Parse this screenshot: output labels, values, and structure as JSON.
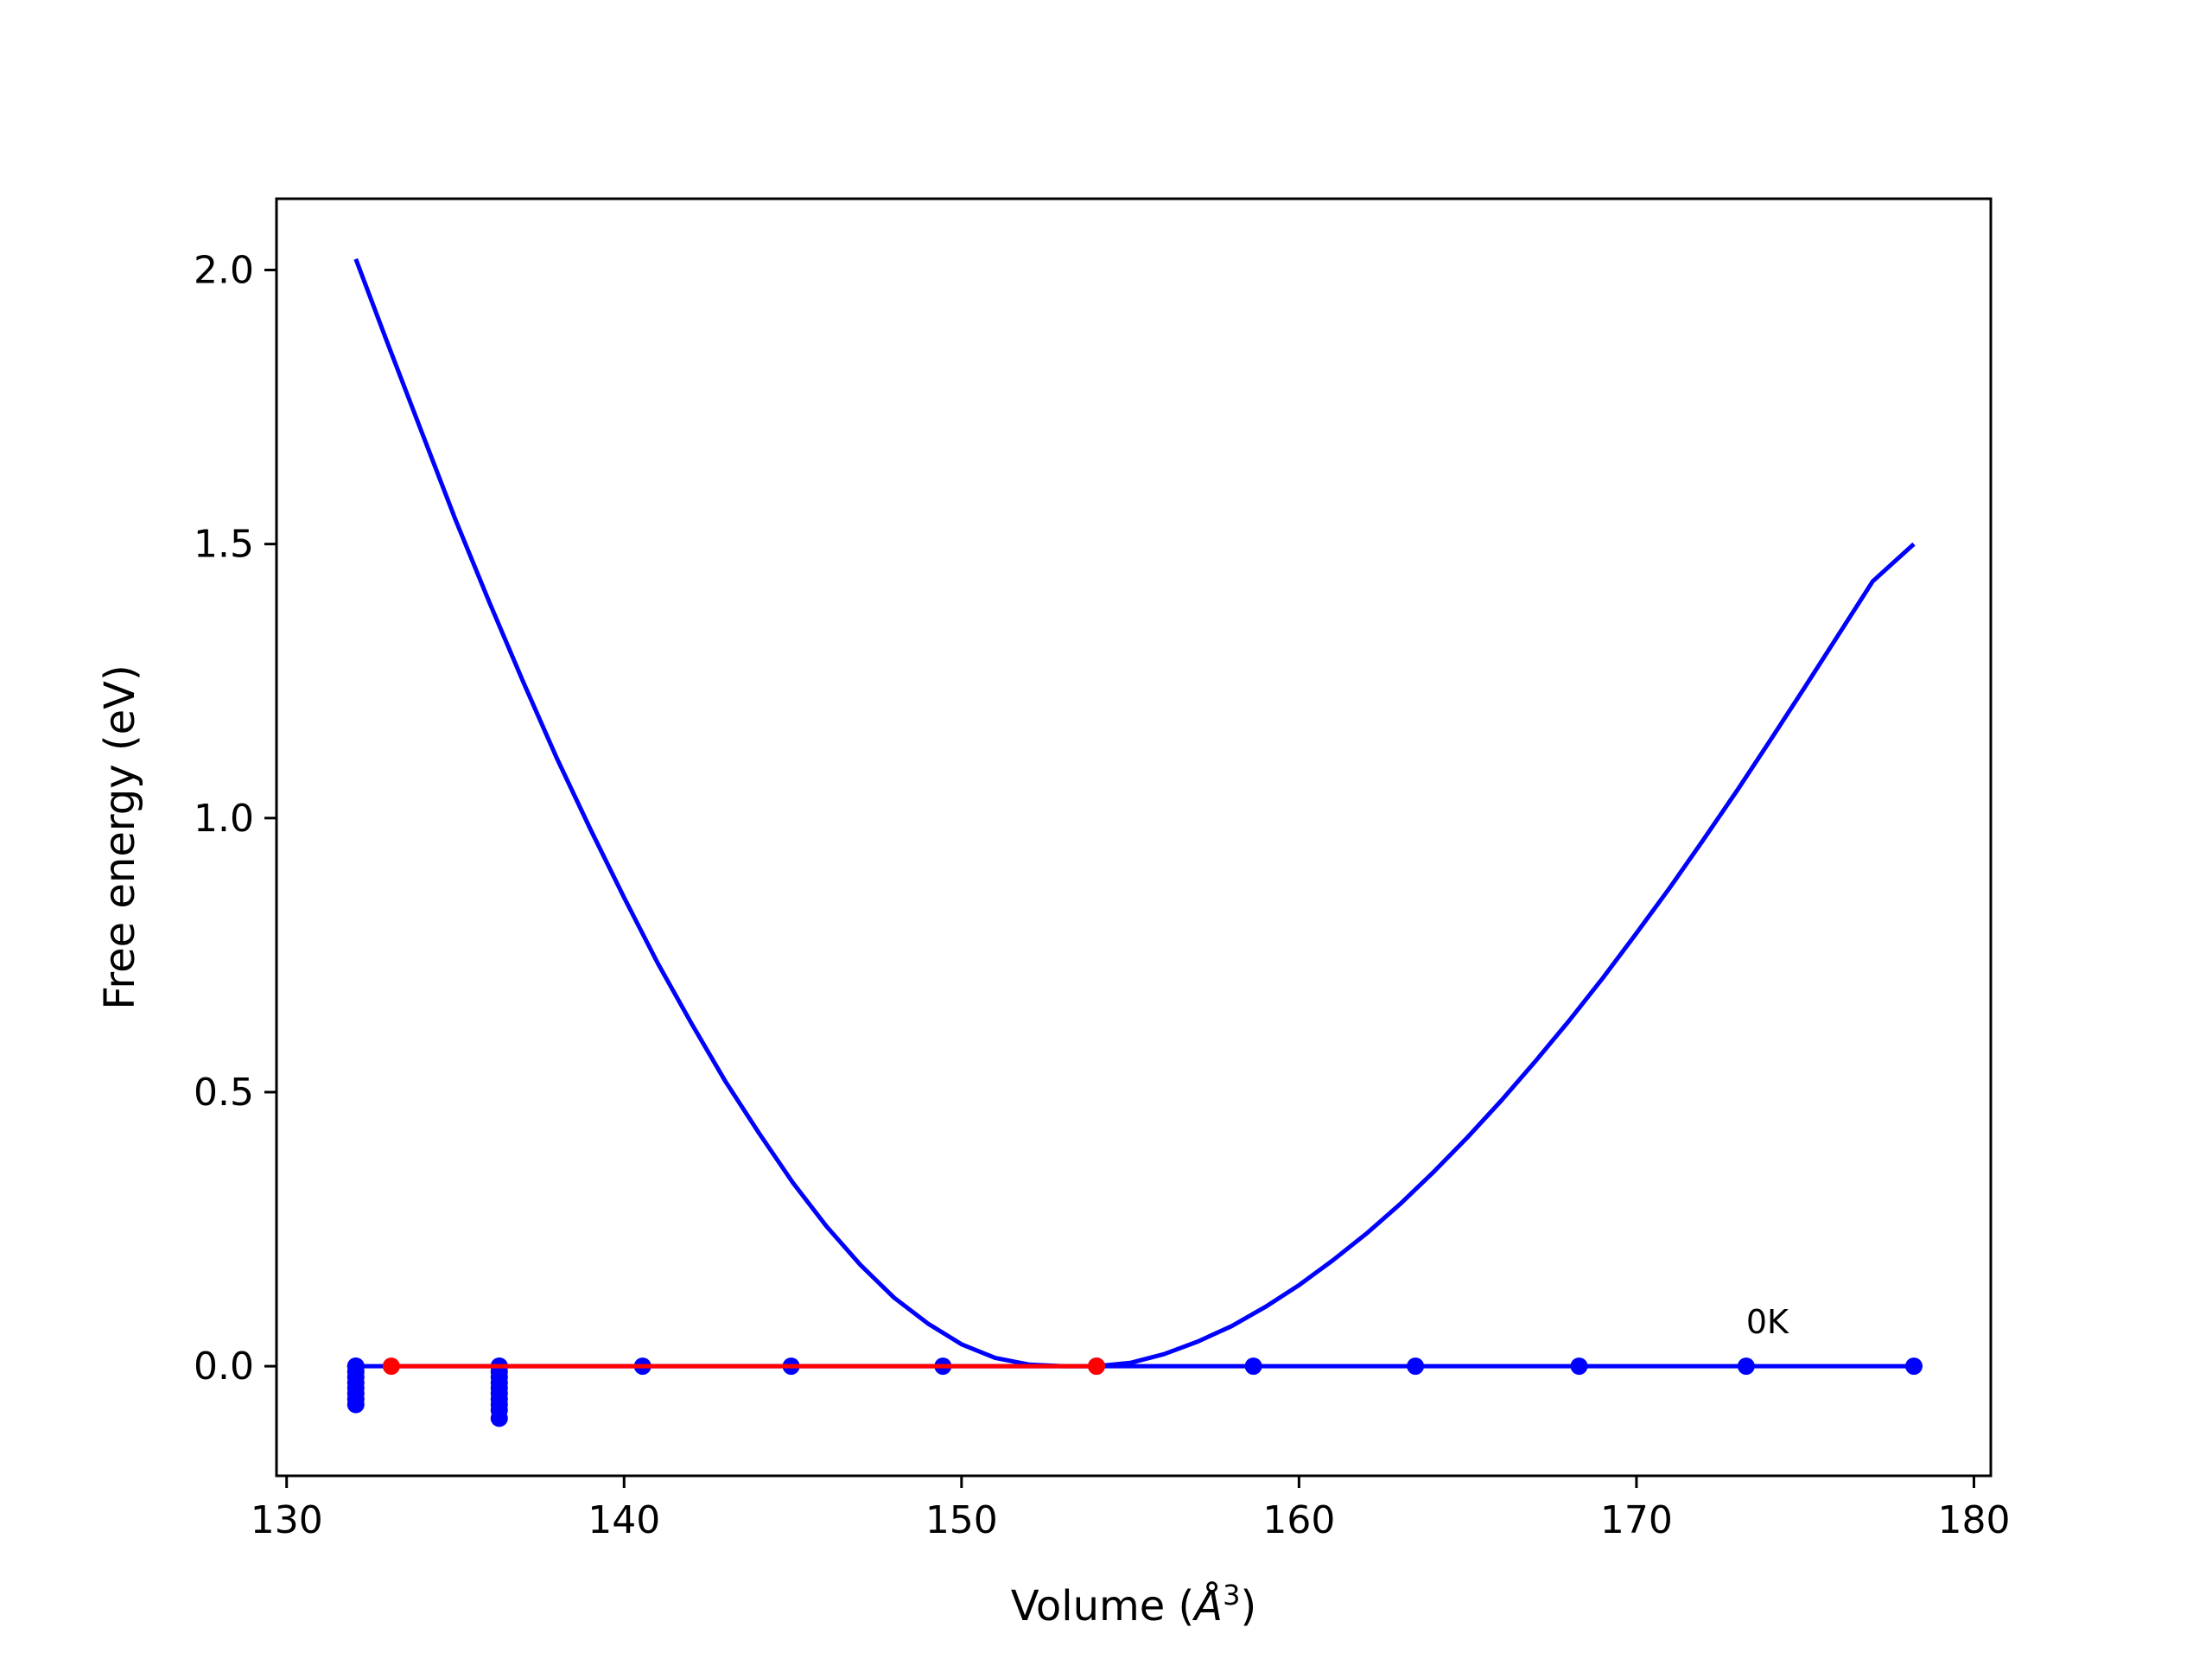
{
  "chart_data": {
    "type": "line",
    "title": "",
    "xlabel": "Volume (Å³)",
    "xlabel_main": "Volume (",
    "xlabel_unit": "Å",
    "xlabel_sup": "3",
    "xlabel_close": ")",
    "ylabel": "Free energy (eV)",
    "xlim": [
      129.7,
      180.5
    ],
    "ylim": [
      -0.2,
      2.13
    ],
    "xticks": [
      130,
      140,
      150,
      160,
      170,
      180
    ],
    "yticks": [
      0.0,
      0.5,
      1.0,
      1.5,
      2.0
    ],
    "xtick_labels": [
      "130",
      "140",
      "150",
      "160",
      "170",
      "180"
    ],
    "ytick_labels": [
      "0.0",
      "0.5",
      "1.0",
      "1.5",
      "2.0"
    ],
    "grid": false,
    "legend": null,
    "series": [
      {
        "color": "#0000ff",
        "kind": "line",
        "x": [
          132.05,
          133.0,
          134.0,
          135.0,
          136.0,
          137.0,
          138.0,
          139.0,
          140.0,
          141.0,
          142.0,
          143.0,
          144.0,
          145.0,
          146.0,
          147.0,
          148.0,
          149.0,
          150.0,
          151.0,
          152.0,
          153.0,
          154.0,
          155.0,
          156.0,
          157.0,
          158.0,
          159.0,
          160.0,
          161.0,
          162.0,
          163.0,
          164.0,
          165.0,
          166.0,
          167.0,
          168.0,
          169.0,
          170.0,
          171.0,
          172.0,
          173.0,
          174.0,
          175.0,
          176.0,
          177.0,
          178.22
        ],
        "y": [
          2.02,
          1.865,
          1.705,
          1.545,
          1.395,
          1.25,
          1.11,
          0.98,
          0.855,
          0.735,
          0.625,
          0.52,
          0.425,
          0.335,
          0.255,
          0.185,
          0.125,
          0.078,
          0.04,
          0.015,
          0.003,
          0.0,
          0.0,
          0.006,
          0.022,
          0.045,
          0.073,
          0.108,
          0.148,
          0.193,
          0.242,
          0.296,
          0.355,
          0.418,
          0.485,
          0.556,
          0.63,
          0.708,
          0.79,
          0.874,
          0.962,
          1.052,
          1.145,
          1.24,
          1.336,
          1.432,
          1.5
        ]
      },
      {
        "color": "#0000ff",
        "kind": "line-markers",
        "x": [
          132.05,
          136.3,
          140.55,
          144.95,
          149.45,
          154.0,
          158.65,
          163.45,
          168.3,
          173.25,
          178.22
        ],
        "y": [
          0.0,
          0.0,
          0.0,
          0.0,
          0.0,
          0.0,
          0.0,
          0.0,
          0.0,
          0.0,
          0.0
        ]
      },
      {
        "color": "#0000ff",
        "kind": "markers",
        "x": [
          132.05,
          132.05,
          132.05,
          132.05,
          132.05,
          132.05,
          132.05,
          132.05,
          136.3,
          136.3,
          136.3,
          136.3,
          136.3,
          136.3,
          136.3,
          136.3,
          136.3,
          136.3
        ],
        "y": [
          0.0,
          -0.01,
          -0.02,
          -0.03,
          -0.04,
          -0.05,
          -0.06,
          -0.07,
          0.0,
          -0.01,
          -0.02,
          -0.03,
          -0.04,
          -0.05,
          -0.06,
          -0.07,
          -0.08,
          -0.095
        ]
      },
      {
        "color": "#ff0000",
        "kind": "line-markers",
        "x": [
          133.1,
          154.0
        ],
        "y": [
          0.0,
          0.0
        ]
      }
    ],
    "annotations": [
      {
        "text": "0K",
        "x": 173.25,
        "y": 0.06
      }
    ]
  }
}
